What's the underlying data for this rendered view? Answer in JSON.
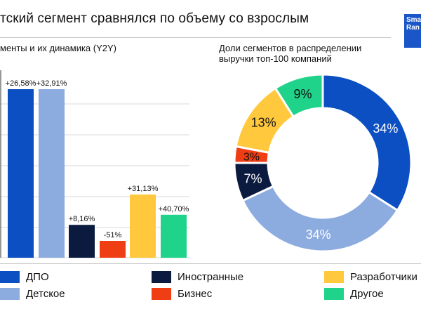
{
  "header": {
    "title": "тский сегмент сравнялся по объему со взрослым",
    "logo_lines": [
      "Sma",
      "Ran"
    ]
  },
  "left_subtitle": "менты и их динамика (Y2Y)",
  "right_subtitle_lines": [
    "Доли сегментов в распределении",
    "выручки топ-100 компаний"
  ],
  "colors": {
    "ДПО": "#0b4fc2",
    "Детское": "#8cabdf",
    "Иностранные": "#0b1b3f",
    "Бизнес": "#ef3d14",
    "Разработчики": "#ffc83d",
    "Другое": "#1fd38a"
  },
  "legend": [
    {
      "label": "ДПО",
      "color": "#0b4fc2"
    },
    {
      "label": "Детское",
      "color": "#8cabdf"
    },
    {
      "label": "Иностранные",
      "color": "#0b1b3f"
    },
    {
      "label": "Бизнес",
      "color": "#ef3d14"
    },
    {
      "label": "Разработчики",
      "color": "#ffc83d"
    },
    {
      "label": "Другое",
      "color": "#1fd38a"
    }
  ],
  "chart_data": [
    {
      "type": "bar",
      "categories": [
        "ДПО",
        "Детское",
        "Иностранные",
        "Бизнес",
        "Разработчики",
        "Другое"
      ],
      "value_labels": [
        "+26,58%",
        "+32,91%",
        "+8,16%",
        "-51%",
        "+31,13%",
        "+40,70%"
      ],
      "growth_pct": [
        26.58,
        32.91,
        8.16,
        -51,
        31.13,
        40.7
      ],
      "relative_size": [
        100,
        100,
        19.5,
        10,
        37.5,
        25.5
      ],
      "grid": true
    },
    {
      "type": "pie",
      "donut": true,
      "categories": [
        "ДПО",
        "Детское",
        "Иностранные",
        "Бизнес",
        "Разработчики",
        "Другое"
      ],
      "values": [
        34,
        34,
        7,
        3,
        13,
        9
      ],
      "labels": [
        "34%",
        "34%",
        "7%",
        "3%",
        "13%",
        "9%"
      ]
    }
  ]
}
